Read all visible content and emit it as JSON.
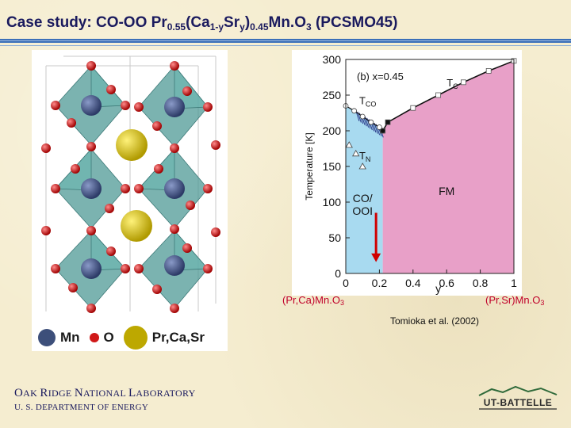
{
  "slide": {
    "title_pre": "Case study: CO-OO Pr",
    "title_sub1": "0.55",
    "title_mid1": "(Ca",
    "title_sub2": "1-y",
    "title_mid2": "Sr",
    "title_sub3": "y",
    "title_mid3": ")",
    "title_sub4": "0.45",
    "title_mid4": "Mn.O",
    "title_sub5": "3",
    "title_post": " (PCSMO45)"
  },
  "crystal_legend": [
    {
      "label": "Mn",
      "color": "#3d4f7a"
    },
    {
      "label": "O",
      "color": "#d01818"
    },
    {
      "label": "Pr,Ca,Sr",
      "color": "#c8b400"
    }
  ],
  "chart_data": {
    "type": "line",
    "panel_label": "(b) x=0.45",
    "xlabel": "y",
    "ylabel": "Temperature [K]",
    "xlim": [
      0,
      1
    ],
    "ylim": [
      0,
      300
    ],
    "x_ticks": [
      0,
      0.2,
      0.4,
      0.6,
      0.8,
      1
    ],
    "x_tick_labels": [
      "0",
      "0.2",
      "0.4",
      "0.6",
      "0.8",
      "1"
    ],
    "y_ticks": [
      0,
      50,
      100,
      150,
      200,
      250,
      300
    ],
    "y_tick_labels": [
      "0",
      "50",
      "100",
      "150",
      "200",
      "250",
      "300"
    ],
    "series": [
      {
        "name": "Tc",
        "label_text": "T",
        "label_sub": "C",
        "x": [
          0.22,
          0.25,
          0.4,
          0.55,
          0.7,
          0.85,
          1.0
        ],
        "y": [
          200,
          212,
          232,
          250,
          268,
          284,
          298
        ]
      },
      {
        "name": "Tco",
        "label_text": "T",
        "label_sub": "CO",
        "x": [
          0.0,
          0.05,
          0.1,
          0.15,
          0.2,
          0.22
        ],
        "y": [
          235,
          228,
          220,
          212,
          205,
          200
        ]
      },
      {
        "name": "TN",
        "label_text": "T",
        "label_sub": "N",
        "x": [
          0.02,
          0.06,
          0.1
        ],
        "y": [
          180,
          168,
          150
        ]
      }
    ],
    "regions": [
      {
        "label_lines": [
          "CO/",
          "OOI"
        ],
        "color": "#a8daf0"
      },
      {
        "label_lines": [
          "FM"
        ],
        "color": "#e8a0c8"
      }
    ],
    "arrow_x": 0.18,
    "composition_left": {
      "text": "(Pr,Ca)Mn.O",
      "sub": "3"
    },
    "composition_right": {
      "text": "(Pr,Sr)Mn.O",
      "sub": "3"
    },
    "reference": "Tomioka et al. (2002)"
  },
  "footer": {
    "ornl_line1_parts": [
      {
        "text": "O",
        "big": true
      },
      {
        "text": "AK ",
        "big": false
      },
      {
        "text": "R",
        "big": true
      },
      {
        "text": "IDGE ",
        "big": false
      },
      {
        "text": "N",
        "big": true
      },
      {
        "text": "ATIONAL ",
        "big": false
      },
      {
        "text": "L",
        "big": true
      },
      {
        "text": "ABORATORY",
        "big": false
      }
    ],
    "ornl_line2": "U. S. DEPARTMENT OF ENERGY",
    "logo_text": "UT-BATTELLE"
  }
}
